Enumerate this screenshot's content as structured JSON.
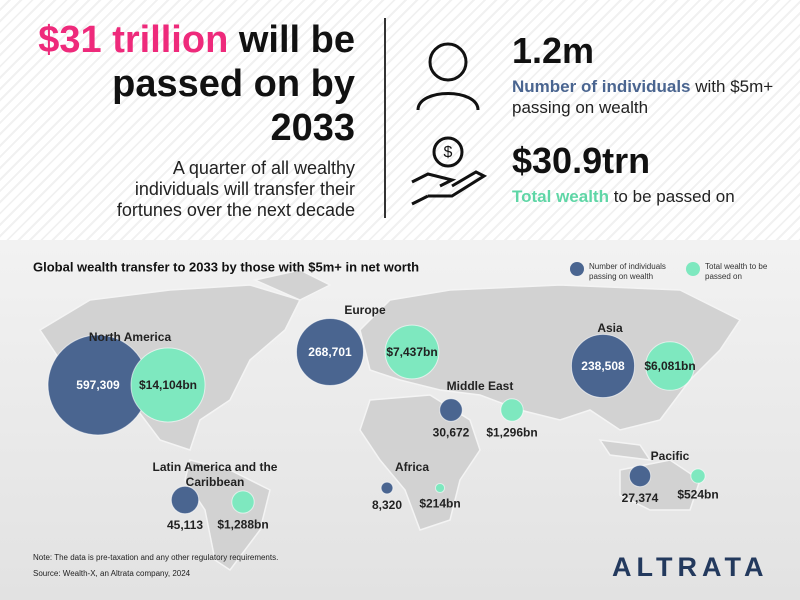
{
  "headline": {
    "highlight": "$31 trillion",
    "rest": " will be passed on by 2033",
    "subtitle": "A quarter of all wealthy individuals will transfer their fortunes over the next decade"
  },
  "stats": [
    {
      "value": "1.2m",
      "highlight": "Number of individuals",
      "rest": " with $5m+ passing on wealth"
    },
    {
      "value": "$30.9trn",
      "highlight": "Total wealth",
      "rest": " to be passed on"
    }
  ],
  "chart_data": {
    "type": "bubble-map",
    "title": "Global wealth transfer to 2033 by those with $5m+ in net worth",
    "categories": [
      "North America",
      "Latin America and the Caribbean",
      "Europe",
      "Africa",
      "Middle East",
      "Asia",
      "Pacific"
    ],
    "series": [
      {
        "name": "Number of individuals passing on wealth",
        "color": "#4a6590",
        "values": [
          597309,
          45113,
          268701,
          8320,
          30672,
          238508,
          27374
        ],
        "value_labels": [
          "597,309",
          "45,113",
          "268,701",
          "8,320",
          "30,672",
          "238,508",
          "27,374"
        ]
      },
      {
        "name": "Total wealth to be passed on",
        "color": "#7ee8bf",
        "values": [
          14104,
          1288,
          7437,
          214,
          1296,
          6081,
          524
        ],
        "value_labels": [
          "$14,104bn",
          "$1,288bn",
          "$7,437bn",
          "$214bn",
          "$1,296bn",
          "$6,081bn",
          "$524bn"
        ]
      }
    ],
    "legend": "top-right"
  },
  "note": "Note: The data is pre-taxation and any other regulatory requirements.",
  "source": "Source: Wealth-X, an Altrata company, 2024",
  "logo": "ALTRATA"
}
